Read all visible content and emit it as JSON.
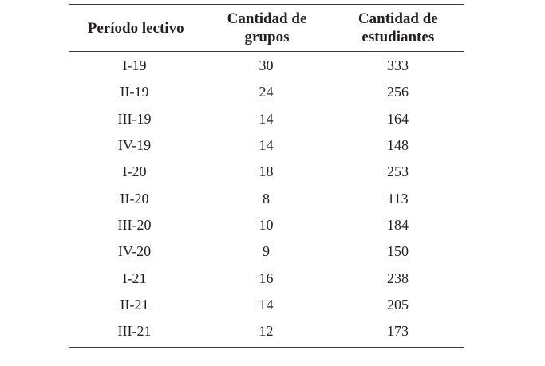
{
  "table": {
    "headers": {
      "period": "Período lectivo",
      "groups_line1": "Cantidad de",
      "groups_line2": "grupos",
      "students_line1": "Cantidad de",
      "students_line2": "estudiantes"
    },
    "rows": [
      {
        "period": "I-19",
        "groups": "30",
        "students": "333"
      },
      {
        "period": "II-19",
        "groups": "24",
        "students": "256"
      },
      {
        "period": "III-19",
        "groups": "14",
        "students": "164"
      },
      {
        "period": "IV-19",
        "groups": "14",
        "students": "148"
      },
      {
        "period": "I-20",
        "groups": "18",
        "students": "253"
      },
      {
        "period": "II-20",
        "groups": "8",
        "students": "113"
      },
      {
        "period": "III-20",
        "groups": "10",
        "students": "184"
      },
      {
        "period": "IV-20",
        "groups": "9",
        "students": "150"
      },
      {
        "period": "I-21",
        "groups": "16",
        "students": "238"
      },
      {
        "period": "II-21",
        "groups": "14",
        "students": "205"
      },
      {
        "period": "III-21",
        "groups": "12",
        "students": "173"
      }
    ]
  }
}
